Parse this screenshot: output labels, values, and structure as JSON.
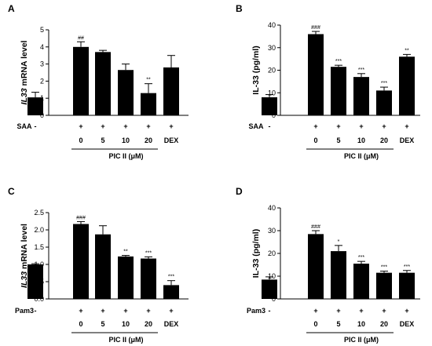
{
  "chart_data": [
    {
      "type": "bar",
      "panel": "A",
      "ylabel_italic": "IL33",
      "ylabel_rest": " mRNA level",
      "ylim": [
        0,
        5
      ],
      "yticks": [
        "0",
        "1",
        "2",
        "3",
        "4",
        "5"
      ],
      "treatment": "SAA",
      "categories": [
        "-",
        "0",
        "5",
        "10",
        "20",
        "DEX"
      ],
      "plus_signs": [
        "-",
        "+",
        "+",
        "+",
        "+",
        "+"
      ],
      "values": [
        1.05,
        4.0,
        3.7,
        2.65,
        1.3,
        2.8
      ],
      "errors": [
        0.3,
        0.3,
        0.1,
        0.35,
        0.55,
        0.7
      ],
      "significance": [
        "",
        "##",
        "",
        "",
        "**",
        ""
      ],
      "group_label": "PIC II (μM)"
    },
    {
      "type": "bar",
      "panel": "B",
      "ylabel_italic": "",
      "ylabel_rest": "IL-33 (pg/ml)",
      "ylim": [
        0,
        40
      ],
      "yticks": [
        "0",
        "10",
        "20",
        "30",
        "40"
      ],
      "treatment": "SAA",
      "categories": [
        "-",
        "0",
        "5",
        "10",
        "20",
        "DEX"
      ],
      "plus_signs": [
        "-",
        "+",
        "+",
        "+",
        "+",
        "+"
      ],
      "values": [
        8,
        36,
        21.5,
        17,
        11,
        26
      ],
      "errors": [
        1.2,
        1.2,
        0.7,
        1.5,
        1.5,
        1.0
      ],
      "significance": [
        "",
        "###",
        "***",
        "***",
        "***",
        "**"
      ],
      "group_label": "PIC II (μM)"
    },
    {
      "type": "bar",
      "panel": "C",
      "ylabel_italic": "IL33",
      "ylabel_rest": " mRNA level",
      "ylim": [
        0,
        2.5
      ],
      "yticks": [
        "0.0",
        "0.5",
        "1.0",
        "1.5",
        "2.0",
        "2.5"
      ],
      "treatment": "Pam3",
      "categories": [
        "-",
        "0",
        "5",
        "10",
        "20",
        "DEX"
      ],
      "plus_signs": [
        "-",
        "+",
        "+",
        "+",
        "+",
        "+"
      ],
      "values": [
        1.0,
        2.17,
        1.87,
        1.23,
        1.17,
        0.4
      ],
      "errors": [
        0.02,
        0.07,
        0.25,
        0.03,
        0.05,
        0.13
      ],
      "significance": [
        "",
        "###",
        "",
        "**",
        "***",
        "***"
      ],
      "group_label": "PIC II (μM)"
    },
    {
      "type": "bar",
      "panel": "D",
      "ylabel_italic": "",
      "ylabel_rest": "IL-33 (pg/ml)",
      "ylim": [
        0,
        40
      ],
      "yticks": [
        "0",
        "10",
        "20",
        "30",
        "40"
      ],
      "treatment": "Pam3",
      "categories": [
        "-",
        "0",
        "5",
        "10",
        "20",
        "DEX"
      ],
      "plus_signs": [
        "-",
        "+",
        "+",
        "+",
        "+",
        "+"
      ],
      "values": [
        8.5,
        28.5,
        21,
        15.5,
        11.5,
        11.5
      ],
      "errors": [
        1.2,
        1.5,
        2.5,
        1.0,
        0.7,
        1.0
      ],
      "significance": [
        "",
        "###",
        "*",
        "***",
        "***",
        "***"
      ],
      "group_label": "PIC II (μM)"
    }
  ]
}
